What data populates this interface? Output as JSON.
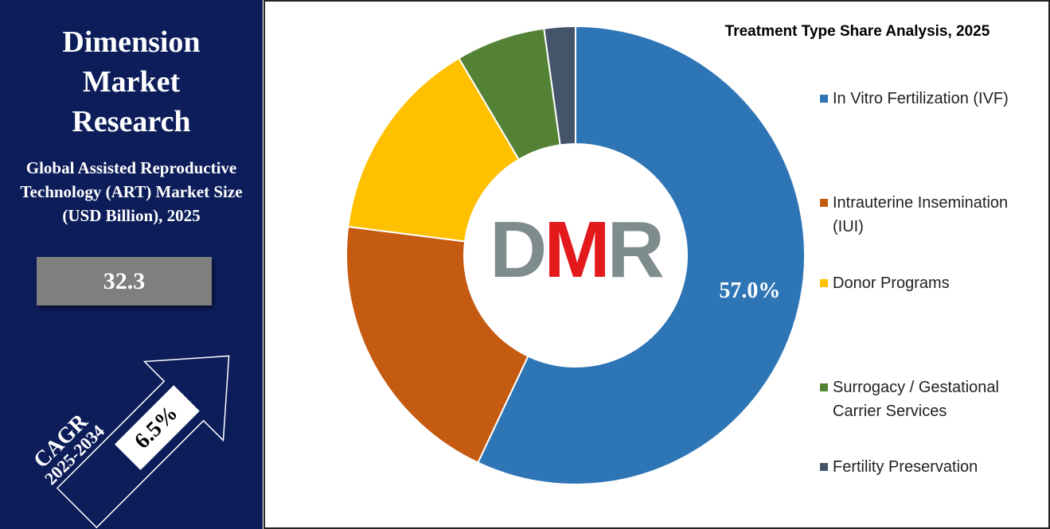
{
  "brand": "Dimension Market Research",
  "market": {
    "title": "Global Assisted Reproductive Technology (ART) Market Size (USD Billion), 2025",
    "value": 32.3,
    "cagr_label": "CAGR",
    "cagr_period": "2025-2034",
    "cagr": "6.5%"
  },
  "logo": "DMR",
  "chart_data": {
    "type": "donut",
    "title": "Treatment Type Share Analysis, 2025",
    "categories": [
      "In Vitro Fertilization (IVF)",
      "Intrauterine Insemination (IUI)",
      "Donor Programs",
      "Surrogacy / Gestational Carrier Services",
      "Fertility Preservation"
    ],
    "values": [
      57.0,
      20.0,
      14.5,
      6.3,
      2.2
    ],
    "value_labels": [
      "57.0%",
      null,
      null,
      null,
      null
    ],
    "colors": [
      "#2e75b6",
      "#c55a11",
      "#ffc000",
      "#548235",
      "#44546a"
    ]
  }
}
